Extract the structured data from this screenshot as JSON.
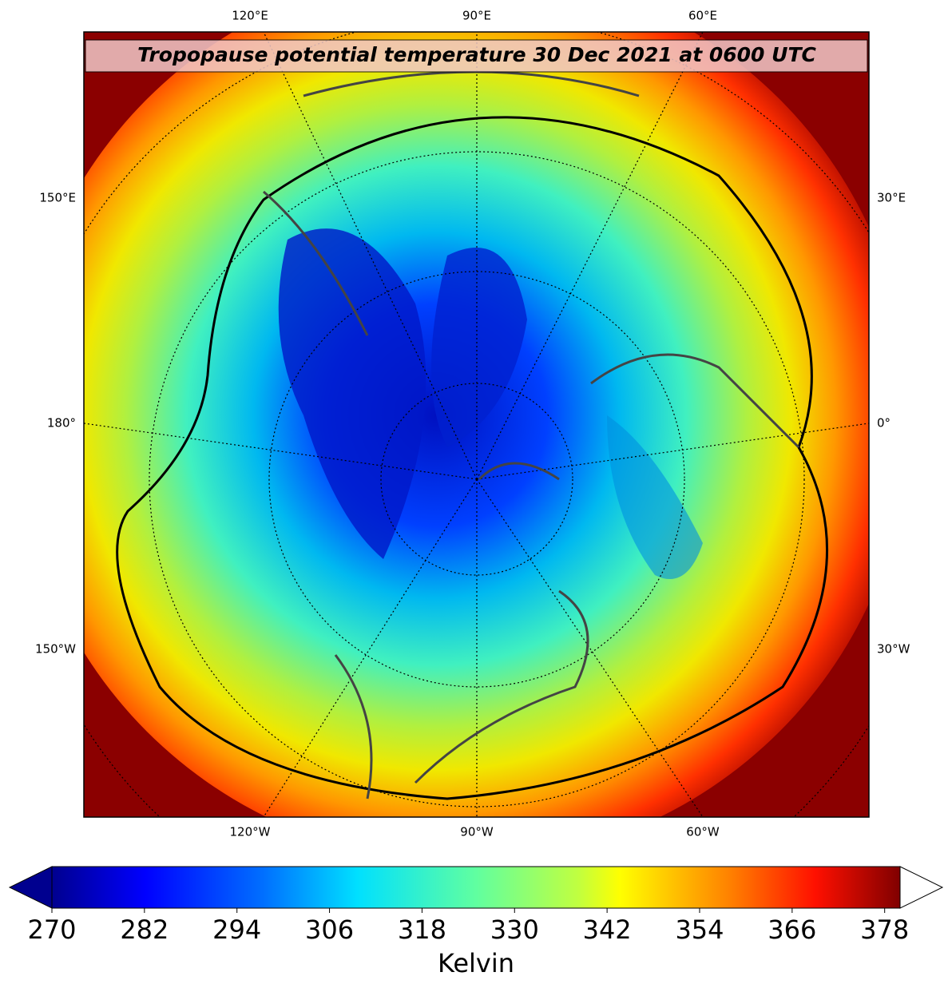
{
  "title": "Tropopause potential temperature 30 Dec 2021 at 0600 UTC",
  "map": {
    "top_labels": [
      "120°E",
      "90°E",
      "60°E"
    ],
    "left_labels": [
      "150°E",
      "180°",
      "150°W"
    ],
    "right_labels": [
      "30°E",
      "0°",
      "30°W"
    ],
    "bottom_labels": [
      "120°W",
      "90°W",
      "60°W"
    ]
  },
  "colorbar": {
    "label": "Kelvin",
    "lim": [
      270,
      380
    ],
    "ticks": [
      270,
      282,
      294,
      306,
      318,
      330,
      342,
      354,
      366,
      378
    ]
  }
}
